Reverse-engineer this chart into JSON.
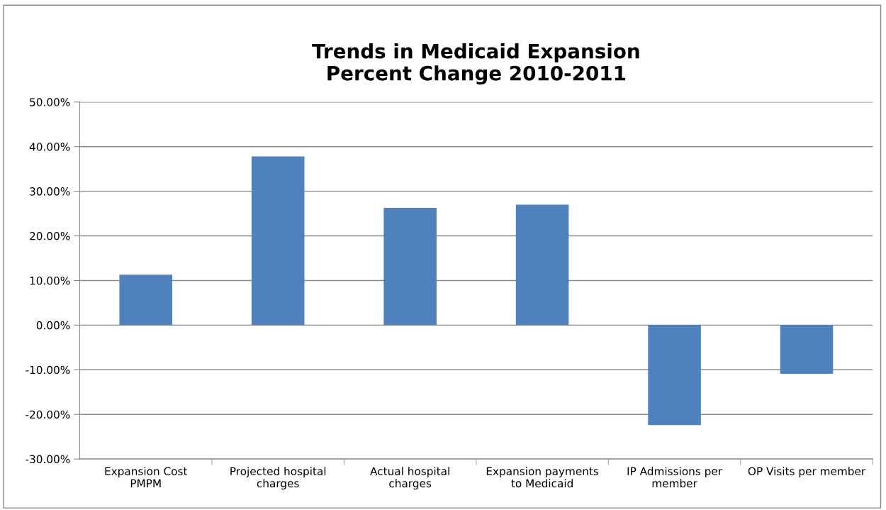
{
  "chart_data": {
    "type": "bar",
    "title": "Trends in Medicaid Expansion\nPercent Change 2010-2011",
    "categories": [
      "Expansion Cost\nPMPM",
      "Projected hospital\ncharges",
      "Actual hospital\ncharges",
      "Expansion payments\nto Medicaid",
      "IP Admissions per\nmember",
      "OP Visits per member"
    ],
    "values": [
      11.3,
      37.8,
      26.3,
      27.0,
      -22.4,
      -10.9
    ],
    "color": "#4f81bd",
    "ylim": [
      -30,
      50
    ],
    "yticks": [
      {
        "value": -30,
        "label": "-30.00%"
      },
      {
        "value": -20,
        "label": "-20.00%"
      },
      {
        "value": -10,
        "label": "-10.00%"
      },
      {
        "value": 0,
        "label": "0.00%"
      },
      {
        "value": 10,
        "label": "10.00%"
      },
      {
        "value": 20,
        "label": "20.00%"
      },
      {
        "value": 30,
        "label": "30.00%"
      },
      {
        "value": 40,
        "label": "40.00%"
      },
      {
        "value": 50,
        "label": "50.00%"
      }
    ],
    "grid": "y",
    "legend": false
  }
}
